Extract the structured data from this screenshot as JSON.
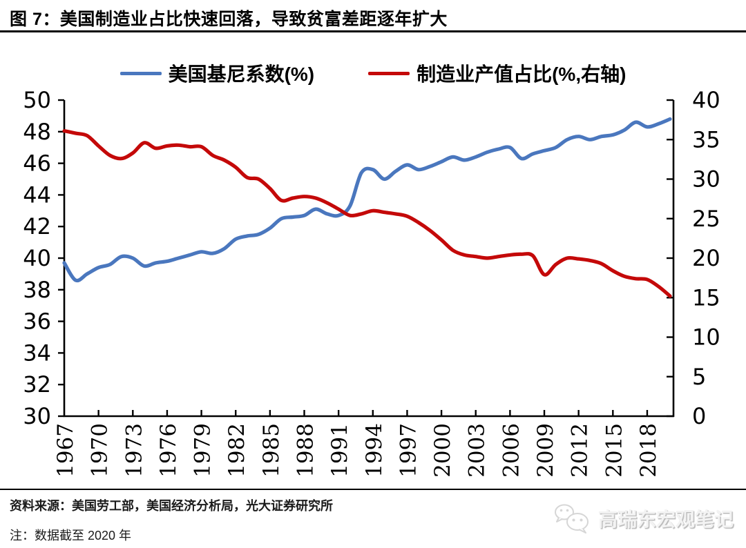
{
  "page": {
    "title": "图 7：美国制造业占比快速回落，导致贫富差距逐年扩大"
  },
  "legend": {
    "items": [
      {
        "label": "美国基尼系数(%)",
        "color": "#4a77be"
      },
      {
        "label": "制造业产值占比(%,右轴)",
        "color": "#c40909"
      }
    ]
  },
  "footer": {
    "source": "资料来源：美国劳工部，美国经济分析局，光大证券研究所",
    "note": "注：数据截至 2020 年",
    "watermark_text": "高瑞东宏观笔记"
  },
  "colors": {
    "gini_line": "#4a77be",
    "mfg_line": "#c40909",
    "axis": "#000000",
    "watermark_gray": "#cccccc"
  },
  "chart_data": {
    "type": "line",
    "title": "图 7：美国制造业占比快速回落，导致贫富差距逐年扩大",
    "grid": false,
    "legend_position": "top",
    "x_label_rotation": 90,
    "x": [
      1967,
      1968,
      1969,
      1970,
      1971,
      1972,
      1973,
      1974,
      1975,
      1976,
      1977,
      1978,
      1979,
      1980,
      1981,
      1982,
      1983,
      1984,
      1985,
      1986,
      1987,
      1988,
      1989,
      1990,
      1991,
      1992,
      1993,
      1994,
      1995,
      1996,
      1997,
      1998,
      1999,
      2000,
      2001,
      2002,
      2003,
      2004,
      2005,
      2006,
      2007,
      2008,
      2009,
      2010,
      2011,
      2012,
      2013,
      2014,
      2015,
      2016,
      2017,
      2018,
      2019,
      2020
    ],
    "x_tick_labels": [
      "1967",
      "1970",
      "1973",
      "1976",
      "1979",
      "1982",
      "1985",
      "1988",
      "1991",
      "1994",
      "1997",
      "2000",
      "2003",
      "2006",
      "2009",
      "2012",
      "2015",
      "2018"
    ],
    "series": [
      {
        "name": "美国基尼系数(%)",
        "axis": "left",
        "color": "#4a77be",
        "values": [
          39.7,
          38.6,
          39.0,
          39.4,
          39.6,
          40.1,
          40.0,
          39.5,
          39.7,
          39.8,
          40.0,
          40.2,
          40.4,
          40.3,
          40.6,
          41.2,
          41.4,
          41.5,
          41.9,
          42.5,
          42.6,
          42.7,
          43.1,
          42.8,
          42.7,
          43.3,
          45.4,
          45.6,
          45.0,
          45.5,
          45.9,
          45.6,
          45.8,
          46.1,
          46.4,
          46.2,
          46.4,
          46.7,
          46.9,
          47.0,
          46.3,
          46.6,
          46.8,
          47.0,
          47.5,
          47.7,
          47.5,
          47.7,
          47.8,
          48.1,
          48.6,
          48.3,
          48.5,
          48.8
        ]
      },
      {
        "name": "制造业产值占比(%,右轴)",
        "axis": "right",
        "color": "#c40909",
        "values": [
          36.1,
          35.8,
          35.5,
          34.2,
          33.0,
          32.6,
          33.3,
          34.6,
          33.9,
          34.2,
          34.3,
          34.1,
          34.1,
          33.0,
          32.4,
          31.5,
          30.2,
          30.0,
          28.8,
          27.3,
          27.6,
          27.8,
          27.6,
          27.0,
          26.2,
          25.4,
          25.6,
          26.0,
          25.8,
          25.6,
          25.3,
          24.5,
          23.5,
          22.3,
          21.0,
          20.4,
          20.2,
          20.0,
          20.2,
          20.4,
          20.5,
          20.3,
          17.9,
          19.2,
          20.0,
          19.9,
          19.7,
          19.3,
          18.4,
          17.7,
          17.4,
          17.3,
          16.4,
          15.2
        ]
      }
    ],
    "left_axis": {
      "min": 30,
      "max": 50,
      "step": 2,
      "ticks": [
        50,
        48,
        46,
        44,
        42,
        40,
        38,
        36,
        34,
        32,
        30
      ]
    },
    "right_axis": {
      "min": 0,
      "max": 40,
      "step": 5,
      "ticks": [
        40,
        35,
        30,
        25,
        20,
        15,
        10,
        5,
        0
      ]
    }
  }
}
